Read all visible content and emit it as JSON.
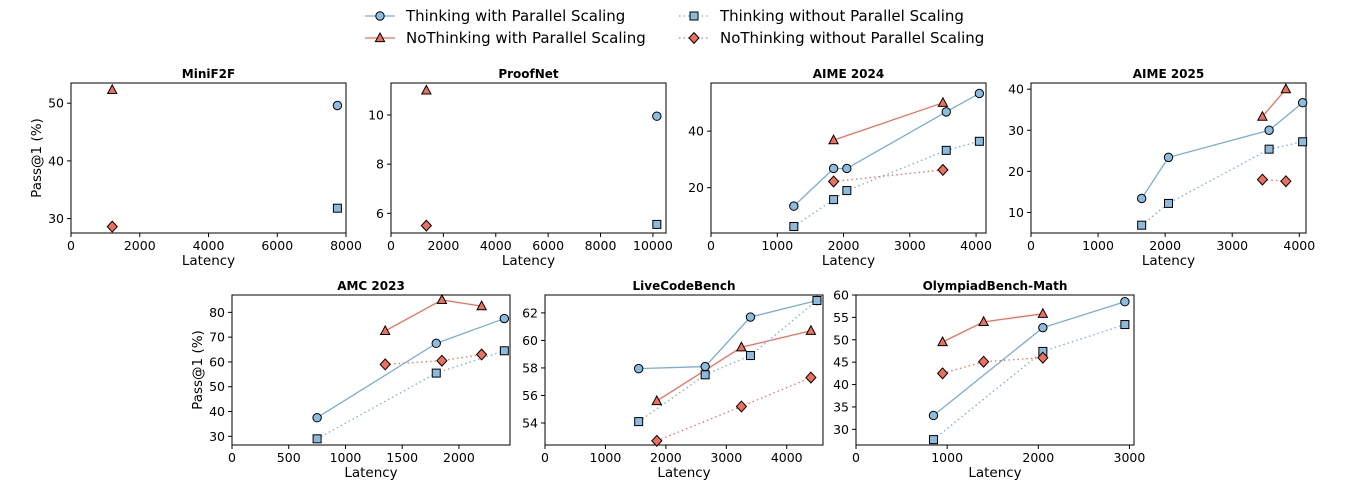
{
  "legend": [
    {
      "label": "Thinking with Parallel Scaling",
      "marker": "circle",
      "style": "solid",
      "color": "#79aed2"
    },
    {
      "label": "NoThinking with Parallel Scaling",
      "marker": "triangle",
      "style": "solid",
      "color": "#ee6f5e"
    },
    {
      "label": "Thinking without Parallel Scaling",
      "marker": "square",
      "style": "dotted",
      "color": "#79aed2"
    },
    {
      "label": "NoThinking without Parallel Scaling",
      "marker": "diamond",
      "style": "dotted",
      "color": "#ee6f5e"
    }
  ],
  "colors": {
    "blue_line": "#79aed2",
    "blue_marker": "#8cbbde",
    "red_line": "#ee6f5e",
    "red_marker": "#ee6f5e",
    "edge": "#000000"
  },
  "chart_data": [
    {
      "type": "line",
      "title": "MiniF2F",
      "xlabel": "Latency",
      "ylabel": "Pass@1 (%)",
      "xlim": [
        0,
        8000
      ],
      "ylim": [
        27.5,
        53.5
      ],
      "xticks": [
        "0",
        "2000",
        "4000",
        "6000",
        "8000"
      ],
      "xtick_values": [
        0,
        2000,
        4000,
        6000,
        8000
      ],
      "yticks": [
        "30",
        "40",
        "50"
      ],
      "ytick_values": [
        30,
        40,
        50
      ],
      "series": [
        {
          "name": "Thinking with Parallel Scaling",
          "x": [
            7750
          ],
          "y": [
            49.6
          ]
        },
        {
          "name": "NoThinking with Parallel Scaling",
          "x": [
            1200
          ],
          "y": [
            52.3
          ]
        },
        {
          "name": "Thinking without Parallel Scaling",
          "x": [
            7750
          ],
          "y": [
            31.8
          ]
        },
        {
          "name": "NoThinking without Parallel Scaling",
          "x": [
            1200
          ],
          "y": [
            28.6
          ]
        }
      ]
    },
    {
      "type": "line",
      "title": "ProofNet",
      "xlabel": "Latency",
      "ylabel": "",
      "xlim": [
        0,
        10500
      ],
      "ylim": [
        5.2,
        11.3
      ],
      "xticks": [
        "0",
        "2000",
        "4000",
        "6000",
        "8000",
        "10000"
      ],
      "xtick_values": [
        0,
        2000,
        4000,
        6000,
        8000,
        10000
      ],
      "yticks": [
        "6",
        "8",
        "10"
      ],
      "ytick_values": [
        6,
        8,
        10
      ],
      "series": [
        {
          "name": "Thinking with Parallel Scaling",
          "x": [
            10150
          ],
          "y": [
            9.95
          ]
        },
        {
          "name": "NoThinking with Parallel Scaling",
          "x": [
            1350
          ],
          "y": [
            11.0
          ]
        },
        {
          "name": "Thinking without Parallel Scaling",
          "x": [
            10150
          ],
          "y": [
            5.55
          ]
        },
        {
          "name": "NoThinking without Parallel Scaling",
          "x": [
            1350
          ],
          "y": [
            5.5
          ]
        }
      ]
    },
    {
      "type": "line",
      "title": "AIME 2024",
      "xlabel": "Latency",
      "ylabel": "",
      "xlim": [
        0,
        4150
      ],
      "ylim": [
        4,
        57
      ],
      "xticks": [
        "0",
        "1000",
        "2000",
        "3000",
        "4000"
      ],
      "xtick_values": [
        0,
        1000,
        2000,
        3000,
        4000
      ],
      "yticks": [
        "20",
        "40"
      ],
      "ytick_values": [
        20,
        40
      ],
      "series": [
        {
          "name": "Thinking with Parallel Scaling",
          "x": [
            1250,
            1850,
            2050,
            3550,
            4050
          ],
          "y": [
            13.5,
            26.8,
            26.8,
            46.8,
            53.3
          ]
        },
        {
          "name": "NoThinking with Parallel Scaling",
          "x": [
            1850,
            3500
          ],
          "y": [
            36.8,
            50
          ]
        },
        {
          "name": "Thinking without Parallel Scaling",
          "x": [
            1250,
            1850,
            2050,
            3550,
            4050
          ],
          "y": [
            6.3,
            15.8,
            19.0,
            33.2,
            36.4
          ]
        },
        {
          "name": "NoThinking without Parallel Scaling",
          "x": [
            1850,
            3500
          ],
          "y": [
            22.2,
            26.3
          ]
        }
      ]
    },
    {
      "type": "line",
      "title": "AIME 2025",
      "xlabel": "Latency",
      "ylabel": "",
      "xlim": [
        0,
        4100
      ],
      "ylim": [
        5,
        41.5
      ],
      "xticks": [
        "0",
        "1000",
        "2000",
        "3000",
        "4000"
      ],
      "xtick_values": [
        0,
        1000,
        2000,
        3000,
        4000
      ],
      "yticks": [
        "10",
        "20",
        "30",
        "40"
      ],
      "ytick_values": [
        10,
        20,
        30,
        40
      ],
      "series": [
        {
          "name": "Thinking with Parallel Scaling",
          "x": [
            1650,
            2050,
            3550,
            4050
          ],
          "y": [
            13.4,
            23.4,
            30.0,
            36.7
          ]
        },
        {
          "name": "NoThinking with Parallel Scaling",
          "x": [
            3450,
            3800
          ],
          "y": [
            33.3,
            40.0
          ]
        },
        {
          "name": "Thinking without Parallel Scaling",
          "x": [
            1650,
            2050,
            3550,
            4050
          ],
          "y": [
            6.9,
            12.2,
            25.4,
            27.2
          ]
        },
        {
          "name": "NoThinking without Parallel Scaling",
          "x": [
            3450,
            3800
          ],
          "y": [
            18.0,
            17.6
          ]
        }
      ]
    },
    {
      "type": "line",
      "title": "AMC 2023",
      "xlabel": "Latency",
      "ylabel": "Pass@1 (%)",
      "xlim": [
        0,
        2450
      ],
      "ylim": [
        26.5,
        87
      ],
      "xticks": [
        "0",
        "500",
        "1000",
        "1500",
        "2000"
      ],
      "xtick_values": [
        0,
        500,
        1000,
        1500,
        2000
      ],
      "yticks": [
        "30",
        "40",
        "50",
        "60",
        "70",
        "80"
      ],
      "ytick_values": [
        30,
        40,
        50,
        60,
        70,
        80
      ],
      "series": [
        {
          "name": "Thinking with Parallel Scaling",
          "x": [
            750,
            1800,
            2400
          ],
          "y": [
            37.5,
            67.5,
            77.5
          ]
        },
        {
          "name": "NoThinking with Parallel Scaling",
          "x": [
            1350,
            1850,
            2200
          ],
          "y": [
            72.5,
            85.0,
            82.5
          ]
        },
        {
          "name": "Thinking without Parallel Scaling",
          "x": [
            750,
            1800,
            2400
          ],
          "y": [
            29.0,
            55.5,
            64.5
          ]
        },
        {
          "name": "NoThinking without Parallel Scaling",
          "x": [
            1350,
            1850,
            2200
          ],
          "y": [
            59.0,
            60.5,
            63.0
          ]
        }
      ]
    },
    {
      "type": "line",
      "title": "LiveCodeBench",
      "xlabel": "Latency",
      "ylabel": "",
      "xlim": [
        0,
        4600
      ],
      "ylim": [
        52.4,
        63.3
      ],
      "xticks": [
        "0",
        "1000",
        "2000",
        "3000",
        "4000"
      ],
      "xtick_values": [
        0,
        1000,
        2000,
        3000,
        4000
      ],
      "yticks": [
        "54",
        "56",
        "58",
        "60",
        "62"
      ],
      "ytick_values": [
        54,
        56,
        58,
        60,
        62
      ],
      "series": [
        {
          "name": "Thinking with Parallel Scaling",
          "x": [
            1550,
            2650,
            3400,
            4500
          ],
          "y": [
            57.95,
            58.1,
            61.7,
            62.9
          ]
        },
        {
          "name": "NoThinking with Parallel Scaling",
          "x": [
            1850,
            3250,
            4400
          ],
          "y": [
            55.6,
            59.5,
            60.7
          ]
        },
        {
          "name": "Thinking without Parallel Scaling",
          "x": [
            1550,
            2650,
            3400,
            4500
          ],
          "y": [
            54.1,
            57.5,
            58.9,
            62.9
          ]
        },
        {
          "name": "NoThinking without Parallel Scaling",
          "x": [
            1850,
            3250,
            4400
          ],
          "y": [
            52.7,
            55.2,
            57.3
          ]
        }
      ]
    },
    {
      "type": "line",
      "title": "OlympiadBench-Math",
      "xlabel": "Latency",
      "ylabel": "",
      "xlim": [
        0,
        3050
      ],
      "ylim": [
        26.5,
        60
      ],
      "xticks": [
        "0",
        "1000",
        "2000",
        "3000"
      ],
      "xtick_values": [
        0,
        1000,
        2000,
        3000
      ],
      "yticks": [
        "30",
        "35",
        "40",
        "45",
        "50",
        "55",
        "60"
      ],
      "ytick_values": [
        30,
        35,
        40,
        45,
        50,
        55,
        60
      ],
      "series": [
        {
          "name": "Thinking with Parallel Scaling",
          "x": [
            850,
            2050,
            2950
          ],
          "y": [
            33.1,
            52.7,
            58.5
          ]
        },
        {
          "name": "NoThinking with Parallel Scaling",
          "x": [
            950,
            1400,
            2050
          ],
          "y": [
            49.5,
            54.0,
            55.8
          ]
        },
        {
          "name": "Thinking without Parallel Scaling",
          "x": [
            850,
            2050,
            2950
          ],
          "y": [
            27.7,
            47.4,
            53.4
          ]
        },
        {
          "name": "NoThinking without Parallel Scaling",
          "x": [
            950,
            1400,
            2050
          ],
          "y": [
            42.5,
            45.1,
            46.0
          ]
        }
      ]
    }
  ]
}
